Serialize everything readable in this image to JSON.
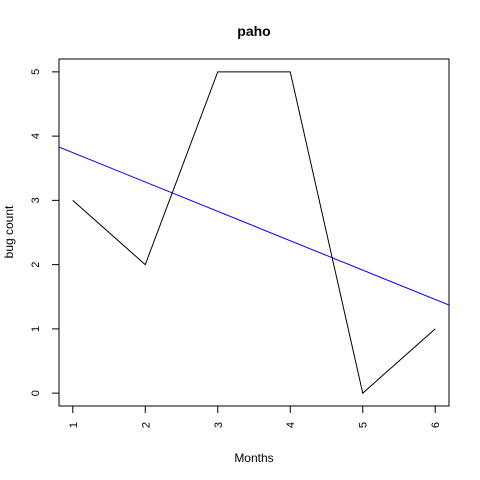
{
  "chart_data": {
    "type": "line",
    "title": "paho",
    "xlabel": "Months",
    "ylabel": "bug count",
    "x": [
      1,
      2,
      3,
      4,
      5,
      6
    ],
    "xlim": [
      0.81,
      6.19
    ],
    "ylim": [
      -0.2,
      5.2
    ],
    "xticks": [
      "1",
      "2",
      "3",
      "4",
      "5",
      "6"
    ],
    "yticks": [
      "0",
      "1",
      "2",
      "3",
      "4",
      "5"
    ],
    "grid": false,
    "series": [
      {
        "values": [
          3,
          2,
          5,
          5,
          0,
          1
        ],
        "color": "#000000"
      }
    ],
    "trend_line": {
      "intercept": 4.2,
      "slope": -0.4571,
      "color": "#0000ff"
    }
  }
}
